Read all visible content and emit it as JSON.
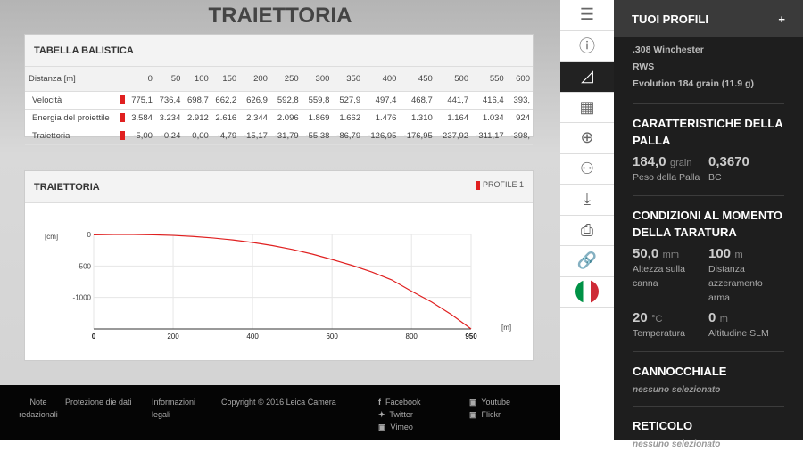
{
  "title": "TRAIETTORIA",
  "table": {
    "title": "TABELLA BALISTICA",
    "header": [
      "Distanza [m]",
      "0",
      "50",
      "100",
      "150",
      "200",
      "250",
      "300",
      "350",
      "400",
      "450",
      "500",
      "550",
      "600"
    ],
    "rows": [
      {
        "label": "Velocità",
        "values": [
          "775,1",
          "736,4",
          "698,7",
          "662,2",
          "626,9",
          "592,8",
          "559,8",
          "527,9",
          "497,4",
          "468,7",
          "441,7",
          "416,4",
          "393,"
        ]
      },
      {
        "label": "Energia del proiettile",
        "values": [
          "3.584",
          "3.234",
          "2.912",
          "2.616",
          "2.344",
          "2.096",
          "1.869",
          "1.662",
          "1.476",
          "1.310",
          "1.164",
          "1.034",
          "924"
        ]
      },
      {
        "label": "Traiettoria",
        "values": [
          "-5,00",
          "-0,24",
          "0,00",
          "-4,79",
          "-15,17",
          "-31,79",
          "-55,38",
          "-86,79",
          "-126,95",
          "-176,95",
          "-237,92",
          "-311,17",
          "-398,"
        ]
      }
    ]
  },
  "chart_data": {
    "type": "line",
    "title": "TRAIETTORIA",
    "ylabel": "[cm]",
    "xlabel": "[m]",
    "legend": [
      "PROFILE 1"
    ],
    "xlim": [
      0,
      950
    ],
    "ylim": [
      -1500,
      0
    ],
    "xticks": [
      "0",
      "200",
      "400",
      "600",
      "800",
      "950"
    ],
    "yticks": [
      "0",
      "-500",
      "-1000"
    ],
    "color": "#e02020",
    "x": [
      0,
      50,
      100,
      150,
      200,
      250,
      300,
      350,
      400,
      450,
      500,
      550,
      600,
      650,
      700,
      750,
      800,
      850,
      900,
      950
    ],
    "y": [
      -5,
      -0.24,
      0,
      -4.79,
      -15.17,
      -31.79,
      -55.38,
      -86.79,
      -126.95,
      -176.95,
      -237.92,
      -311.17,
      -398,
      -490,
      -595,
      -720,
      -900,
      -1070,
      -1270,
      -1500
    ]
  },
  "sidebar": {
    "title": "TUOI PROFILI",
    "plus": "+",
    "profile": [
      ".308 Winchester",
      "RWS",
      "Evolution 184 grain (11.9 g)"
    ],
    "ball": {
      "title": "CARATTERISTICHE DELLA PALLA",
      "weight": "184,0",
      "weight_unit": "grain",
      "weight_label": "Peso della Palla",
      "bc": "0,3670",
      "bc_label": "BC"
    },
    "cond": {
      "title": "CONDIZIONI AL MOMENTO DELLA TARATURA",
      "h": "50,0",
      "h_unit": "mm",
      "h_label": "Altezza sulla canna",
      "d": "100",
      "d_unit": "m",
      "d_label": "Distanza azzeramento arma",
      "t": "20",
      "t_unit": "°C",
      "t_label": "Temperatura",
      "a": "0",
      "a_unit": "m",
      "a_label": "Altitudine SLM"
    },
    "scope": {
      "title": "CANNOCCHIALE",
      "value": "nessuno selezionato"
    },
    "reticle": {
      "title": "RETICOLO",
      "value": "nessuno selezionato"
    }
  },
  "footer": {
    "note": "Note redazionali",
    "privacy": "Protezione die dati",
    "legal": "Informazioni legali",
    "copyright": "Copyright © 2016 Leica Camera",
    "facebook": "Facebook",
    "twitter": "Twitter",
    "vimeo": "Vimeo",
    "youtube": "Youtube",
    "flickr": "Flickr"
  }
}
